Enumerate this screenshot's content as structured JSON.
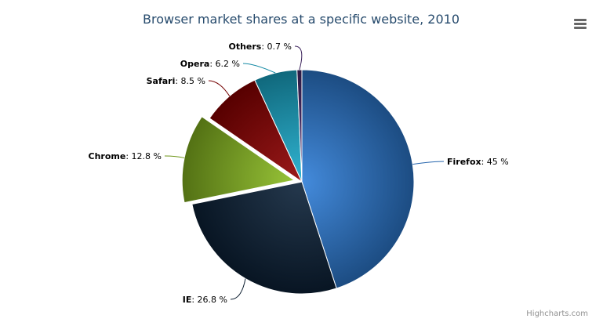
{
  "chart_data": {
    "type": "pie",
    "title": "Browser market shares at a specific website, 2010",
    "unit": "%",
    "slices": [
      {
        "name": "Firefox",
        "value": 45.0,
        "color": "#2f7ed8",
        "sliced": false
      },
      {
        "name": "IE",
        "value": 26.8,
        "color": "#0d233a",
        "sliced": false
      },
      {
        "name": "Chrome",
        "value": 12.8,
        "color": "#8bbc21",
        "sliced": true
      },
      {
        "name": "Safari",
        "value": 8.5,
        "color": "#910000",
        "sliced": false
      },
      {
        "name": "Opera",
        "value": 6.2,
        "color": "#1aadce",
        "sliced": false
      },
      {
        "name": "Others",
        "value": 0.7,
        "color": "#492970",
        "sliced": false
      }
    ]
  },
  "credits": "Highcharts.com",
  "menu_icon": "hamburger-menu-icon"
}
